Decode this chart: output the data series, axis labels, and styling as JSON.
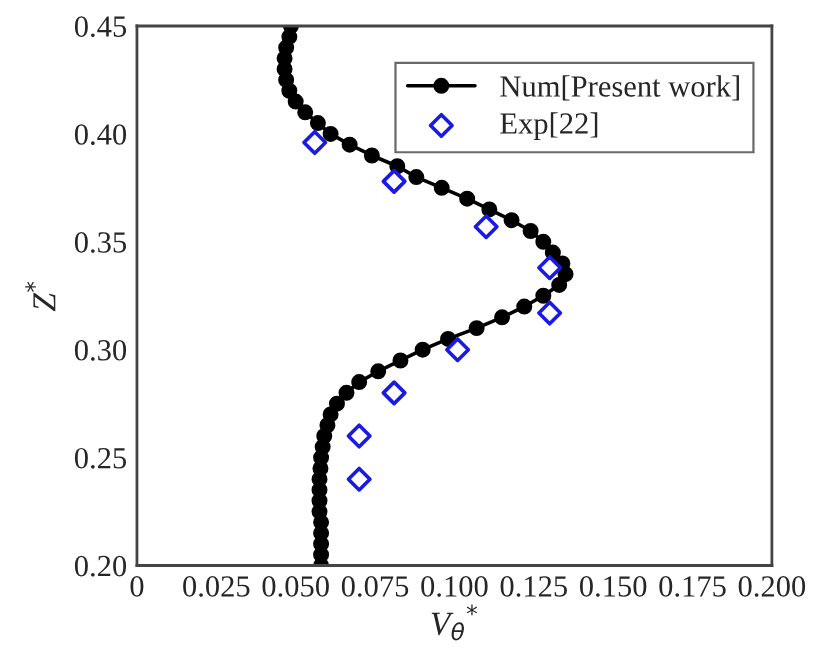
{
  "chart_data": {
    "type": "line",
    "xlabel": "V$_{θ}$$^{*}$",
    "ylabel": "Z$^{*}$",
    "xlim": [
      0,
      0.2
    ],
    "ylim": [
      0.2,
      0.45
    ],
    "xticks": [
      0,
      {
        "value": 0.025,
        "label": "0.025"
      },
      {
        "value": 0.05,
        "label": "0.050"
      },
      {
        "value": 0.075,
        "label": "0.075"
      },
      {
        "value": 0.1,
        "label": "0.100"
      },
      {
        "value": 0.125,
        "label": "0.125"
      },
      {
        "value": 0.15,
        "label": "0.150"
      },
      {
        "value": 0.175,
        "label": "0.175"
      },
      {
        "value": 0.2,
        "label": "0.200"
      }
    ],
    "yticks": [
      {
        "value": 0.2,
        "label": "0.20"
      },
      0.25,
      {
        "value": 0.3,
        "label": "0.30"
      },
      0.35,
      {
        "value": 0.4,
        "label": "0.40"
      },
      0.45
    ],
    "grid": false,
    "legend": "top right",
    "series": [
      {
        "name": "Num[Present work]",
        "color": "#000000",
        "marker": "circle",
        "line_style": "solid",
        "x": [
          0.0485,
          0.048,
          0.047,
          0.0465,
          0.0465,
          0.047,
          0.048,
          0.05,
          0.053,
          0.057,
          0.061,
          0.067,
          0.074,
          0.082,
          0.088,
          0.096,
          0.104,
          0.111,
          0.118,
          0.124,
          0.128,
          0.131,
          0.134,
          0.135,
          0.133,
          0.128,
          0.122,
          0.115,
          0.107,
          0.098,
          0.09,
          0.083,
          0.076,
          0.07,
          0.066,
          0.063,
          0.061,
          0.06,
          0.059,
          0.0585,
          0.058,
          0.0578,
          0.0575,
          0.0575,
          0.0575,
          0.0575,
          0.058,
          0.058,
          0.058,
          0.058,
          0.058
        ],
        "values": [
          0.45,
          0.445,
          0.44,
          0.435,
          0.43,
          0.425,
          0.42,
          0.415,
          0.41,
          0.405,
          0.4,
          0.395,
          0.39,
          0.385,
          0.38,
          0.375,
          0.37,
          0.365,
          0.36,
          0.355,
          0.35,
          0.345,
          0.34,
          0.335,
          0.33,
          0.325,
          0.32,
          0.315,
          0.31,
          0.305,
          0.3,
          0.295,
          0.29,
          0.285,
          0.28,
          0.275,
          0.27,
          0.265,
          0.26,
          0.255,
          0.25,
          0.245,
          0.24,
          0.235,
          0.23,
          0.225,
          0.22,
          0.215,
          0.21,
          0.205,
          0.2
        ]
      },
      {
        "name": "Exp[22]",
        "type": "scatter",
        "color": "#1a1ae6",
        "marker": "diamond",
        "x": [
          0.056,
          0.081,
          0.11,
          0.13,
          0.13,
          0.101,
          0.081,
          0.07,
          0.07
        ],
        "values": [
          0.396,
          0.378,
          0.357,
          0.338,
          0.317,
          0.3,
          0.28,
          0.26,
          0.24
        ]
      }
    ]
  }
}
